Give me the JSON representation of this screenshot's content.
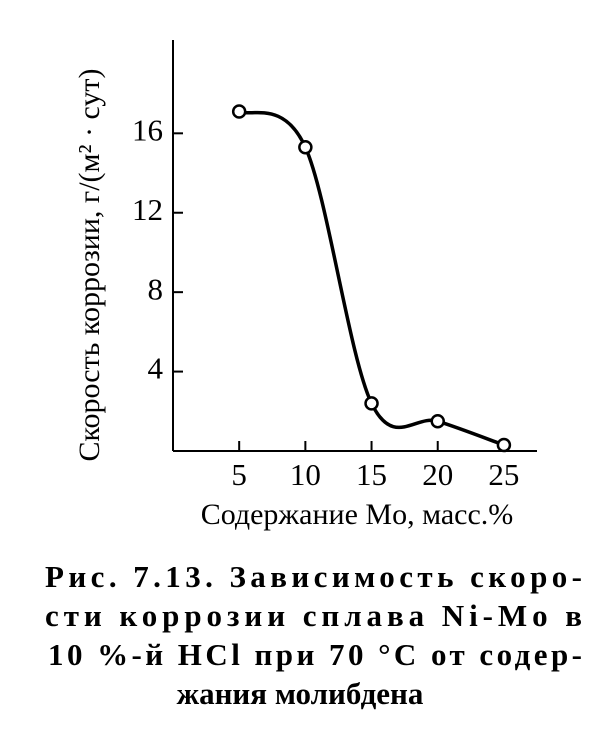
{
  "chart_data": {
    "type": "line",
    "ylabel": "Скорость коррозии, г/(м² · сут)",
    "xlabel": "Содержание Mo, масс.%",
    "x": [
      5,
      10,
      15,
      20,
      25
    ],
    "values": [
      17.1,
      15.3,
      2.4,
      1.5,
      0.3
    ],
    "color": "#000000",
    "xlim": [
      0,
      27.5
    ],
    "xticks": [
      5,
      10,
      15,
      20,
      25
    ],
    "ylim": [
      0,
      20.7
    ],
    "yticks": [
      4,
      8,
      12,
      16
    ],
    "caption": [
      "Рис.   7.13. Зависимость скоро-",
      "сти коррозии сплава Ni-Mo в",
      "10 %-й HCl при 70 °C от содер-",
      "жания молибдена"
    ]
  }
}
